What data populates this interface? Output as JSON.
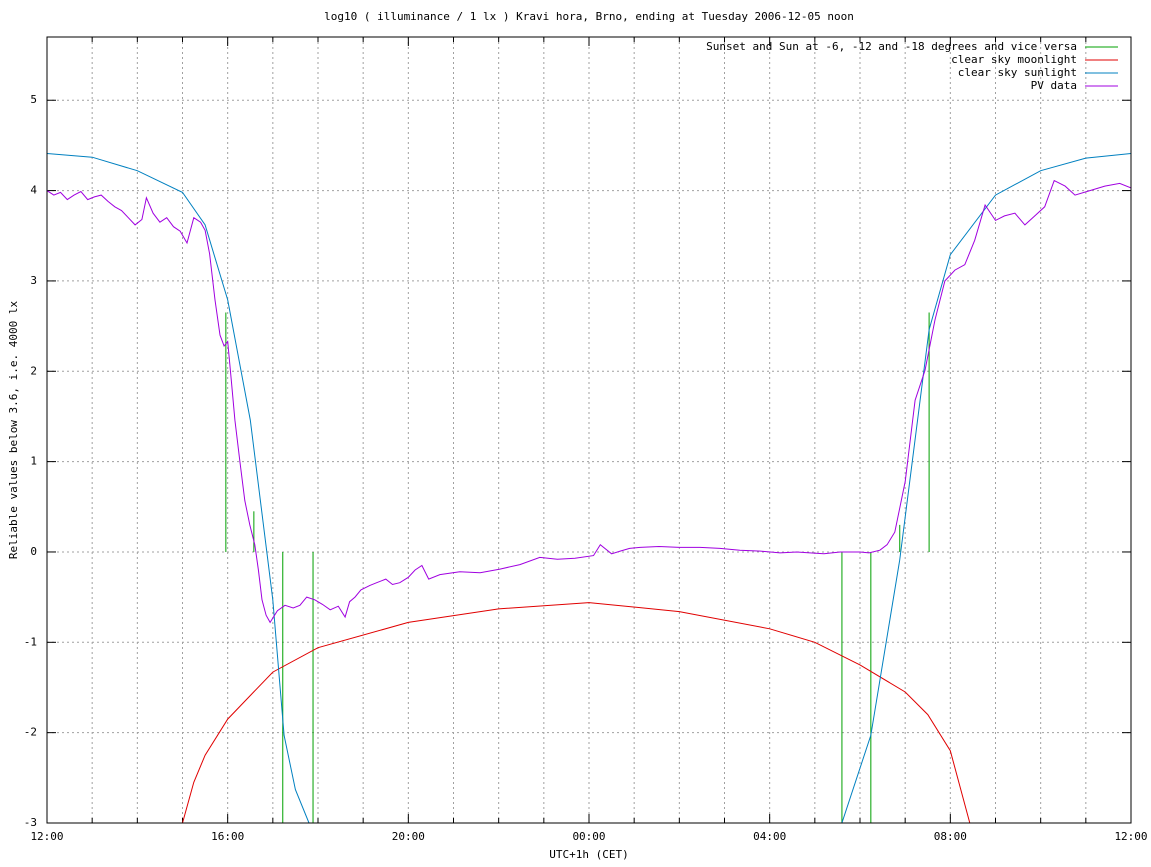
{
  "chart_data": {
    "type": "line",
    "title": "log10 ( illuminance / 1 lx ) Kravi hora, Brno, ending at Tuesday 2006-12-05 noon",
    "xlabel": "UTC+1h (CET)",
    "ylabel": "Reliable values below 3.6, i.e. 4000 lx",
    "xlim": [
      0,
      24
    ],
    "xticks": [
      {
        "value": 0,
        "label": "12:00"
      },
      {
        "value": 4,
        "label": "16:00"
      },
      {
        "value": 8,
        "label": "20:00"
      },
      {
        "value": 12,
        "label": "00:00"
      },
      {
        "value": 16,
        "label": "04:00"
      },
      {
        "value": 20,
        "label": "08:00"
      },
      {
        "value": 24,
        "label": "12:00"
      }
    ],
    "xminorticks": [
      1,
      2,
      3,
      5,
      6,
      7,
      9,
      10,
      11,
      13,
      14,
      15,
      17,
      18,
      19,
      21,
      22,
      23
    ],
    "ylim": [
      -3,
      5.7
    ],
    "yticks": [
      -3,
      -2,
      -1,
      0,
      1,
      2,
      3,
      4,
      5
    ],
    "grid": true,
    "legend": "top right",
    "series": [
      {
        "name": "Sunset and Sun at -6, -12 and -18 degrees and vice versa",
        "color": "#00a000",
        "style": "impulses",
        "x": [
          3.96,
          4.58,
          5.22,
          5.89,
          17.6,
          18.24,
          18.88,
          19.53
        ],
        "values": [
          2.65,
          0.45,
          -3,
          -3,
          -3,
          -3,
          0.3,
          2.65
        ]
      },
      {
        "name": "clear sky moonlight",
        "color": "#e00000",
        "style": "lines",
        "x": [
          3,
          3.25,
          3.5,
          4,
          5,
          6,
          8,
          10,
          12,
          14,
          16,
          17,
          18,
          19,
          19.5,
          20,
          20.43
        ],
        "values": [
          -3,
          -2.55,
          -2.25,
          -1.85,
          -1.33,
          -1.06,
          -0.78,
          -0.63,
          -0.56,
          -0.66,
          -0.85,
          -1.0,
          -1.25,
          -1.55,
          -1.8,
          -2.2,
          -3
        ]
      },
      {
        "name": "clear sky sunlight",
        "color": "#0080c0",
        "style": "lines",
        "x": [
          0,
          1,
          2,
          3,
          3.5,
          4,
          4.5,
          5,
          5.25,
          5.5,
          5.8,
          11.7,
          17.6,
          18.24,
          18.88,
          19.53,
          20,
          21,
          22,
          23,
          24
        ],
        "values": [
          4.41,
          4.37,
          4.22,
          3.98,
          3.62,
          2.79,
          1.46,
          -0.53,
          -2.03,
          -2.63,
          -3,
          null,
          -3,
          -2.03,
          -0.09,
          2.46,
          3.29,
          3.95,
          4.22,
          4.36,
          4.41
        ]
      },
      {
        "name": "PV data",
        "color": "#a000e0",
        "style": "lines",
        "x": [
          0,
          0.15,
          0.3,
          0.45,
          0.6,
          0.75,
          0.9,
          1.05,
          1.2,
          1.35,
          1.5,
          1.65,
          1.8,
          1.95,
          2.1,
          2.2,
          2.35,
          2.5,
          2.65,
          2.8,
          2.95,
          3.1,
          3.25,
          3.4,
          3.5,
          3.6,
          3.72,
          3.83,
          3.92,
          4.0,
          4.08,
          4.16,
          4.27,
          4.38,
          4.49,
          4.6,
          4.68,
          4.76,
          4.85,
          4.94,
          5.1,
          5.27,
          5.45,
          5.6,
          5.75,
          5.93,
          6.1,
          6.27,
          6.45,
          6.6,
          6.7,
          6.82,
          6.95,
          7.15,
          7.3,
          7.5,
          7.65,
          7.81,
          8.0,
          8.15,
          8.3,
          8.45,
          8.7,
          9.14,
          9.59,
          10.03,
          10.47,
          10.91,
          11.3,
          11.69,
          12.1,
          12.25,
          12.5,
          12.69,
          12.9,
          13.13,
          13.55,
          14.0,
          14.46,
          14.9,
          15.34,
          15.8,
          16.23,
          16.6,
          16.89,
          17.2,
          17.56,
          18.0,
          18.2,
          18.44,
          18.6,
          18.77,
          19.0,
          19.22,
          19.44,
          19.66,
          19.88,
          20.1,
          20.32,
          20.54,
          20.77,
          21.0,
          21.2,
          21.43,
          21.65,
          21.87,
          22.09,
          22.3,
          22.54,
          22.76,
          23.09,
          23.42,
          23.75,
          24.0
        ],
        "values": [
          4.0,
          3.95,
          3.98,
          3.9,
          3.95,
          3.99,
          3.9,
          3.93,
          3.95,
          3.88,
          3.82,
          3.78,
          3.7,
          3.62,
          3.68,
          3.92,
          3.75,
          3.65,
          3.7,
          3.6,
          3.55,
          3.42,
          3.7,
          3.65,
          3.56,
          3.3,
          2.79,
          2.4,
          2.28,
          2.33,
          1.9,
          1.46,
          1.0,
          0.57,
          0.3,
          0.08,
          -0.2,
          -0.53,
          -0.7,
          -0.78,
          -0.65,
          -0.59,
          -0.62,
          -0.59,
          -0.5,
          -0.53,
          -0.58,
          -0.64,
          -0.6,
          -0.72,
          -0.55,
          -0.5,
          -0.42,
          -0.37,
          -0.34,
          -0.3,
          -0.36,
          -0.34,
          -0.28,
          -0.2,
          -0.15,
          -0.3,
          -0.25,
          -0.22,
          -0.23,
          -0.19,
          -0.14,
          -0.06,
          -0.08,
          -0.07,
          -0.04,
          0.08,
          -0.02,
          0.01,
          0.04,
          0.05,
          0.06,
          0.05,
          0.05,
          0.04,
          0.02,
          0.01,
          -0.01,
          0.0,
          -0.01,
          -0.02,
          0.0,
          0.0,
          -0.01,
          0.02,
          0.08,
          0.22,
          0.78,
          1.68,
          2.01,
          2.57,
          3.0,
          3.12,
          3.18,
          3.45,
          3.84,
          3.67,
          3.72,
          3.75,
          3.62,
          3.72,
          3.82,
          4.11,
          4.05,
          3.95,
          4.0,
          4.05,
          4.08,
          4.03
        ]
      }
    ]
  }
}
